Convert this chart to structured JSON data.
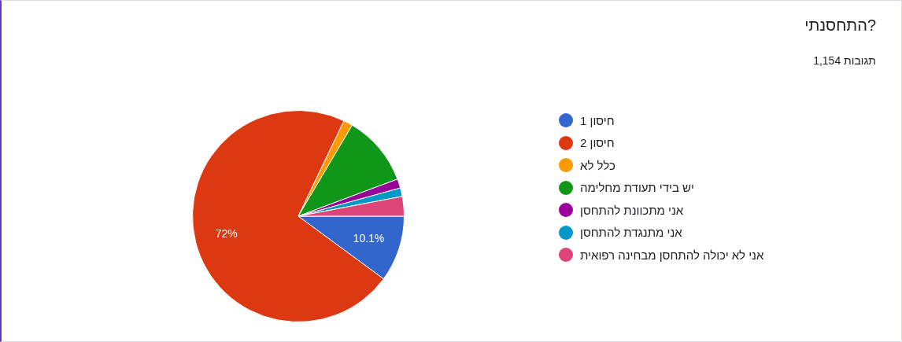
{
  "chart_data": {
    "type": "pie",
    "title": "התחסנתי?",
    "subtitle": "1,154 תגובות",
    "categories": [
      "חיסון 1",
      "חיסון 2",
      "כלל לא",
      "יש בידי תעודת מחלימה",
      "אני מתכוונת להתחסן",
      "אני מתנגדת להתחסן",
      "אני לא יכולה להתחסן מבחינה רפואית"
    ],
    "values": [
      10.1,
      72,
      1.4,
      10.8,
      1.4,
      1.3,
      3.0
    ],
    "value_labels": [
      "10.1%",
      "72%",
      null,
      null,
      null,
      null,
      null
    ],
    "colors": [
      "#3366cc",
      "#dc3912",
      "#ff9900",
      "#109618",
      "#990099",
      "#0099c6",
      "#dd4477"
    ],
    "legend": "right"
  }
}
